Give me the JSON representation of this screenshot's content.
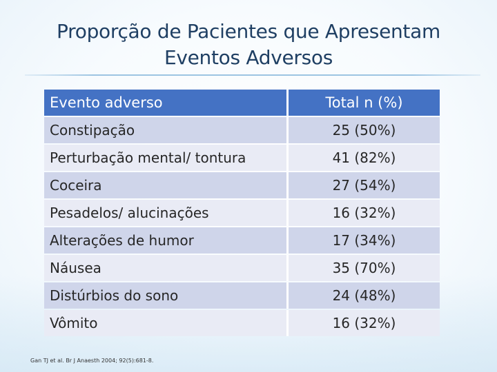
{
  "slide": {
    "title_line1": "Proporção de Pacientes que Apresentam",
    "title_line2": "Eventos Adversos"
  },
  "table": {
    "headers": [
      "Evento adverso",
      "Total n (%)"
    ],
    "rows": [
      {
        "event": "Constipação",
        "total": "25 (50%)"
      },
      {
        "event": "Perturbação mental/ tontura",
        "total": "41 (82%)"
      },
      {
        "event": "Coceira",
        "total": "27 (54%)"
      },
      {
        "event": "Pesadelos/ alucinações",
        "total": "16 (32%)"
      },
      {
        "event": "Alterações de humor",
        "total": "17 (34%)"
      },
      {
        "event": "Náusea",
        "total": "35 (70%)"
      },
      {
        "event": "Distúrbios do sono",
        "total": "24 (48%)"
      },
      {
        "event": "Vômito",
        "total": "16 (32%)"
      }
    ],
    "colors": {
      "header_bg": "#4472c4",
      "row_dark": "#cfd5ea",
      "row_light": "#e9ebf5"
    }
  },
  "citation": {
    "text": "Gan TJ et al. Br J Anaesth 2004; 92(5):681-8."
  }
}
